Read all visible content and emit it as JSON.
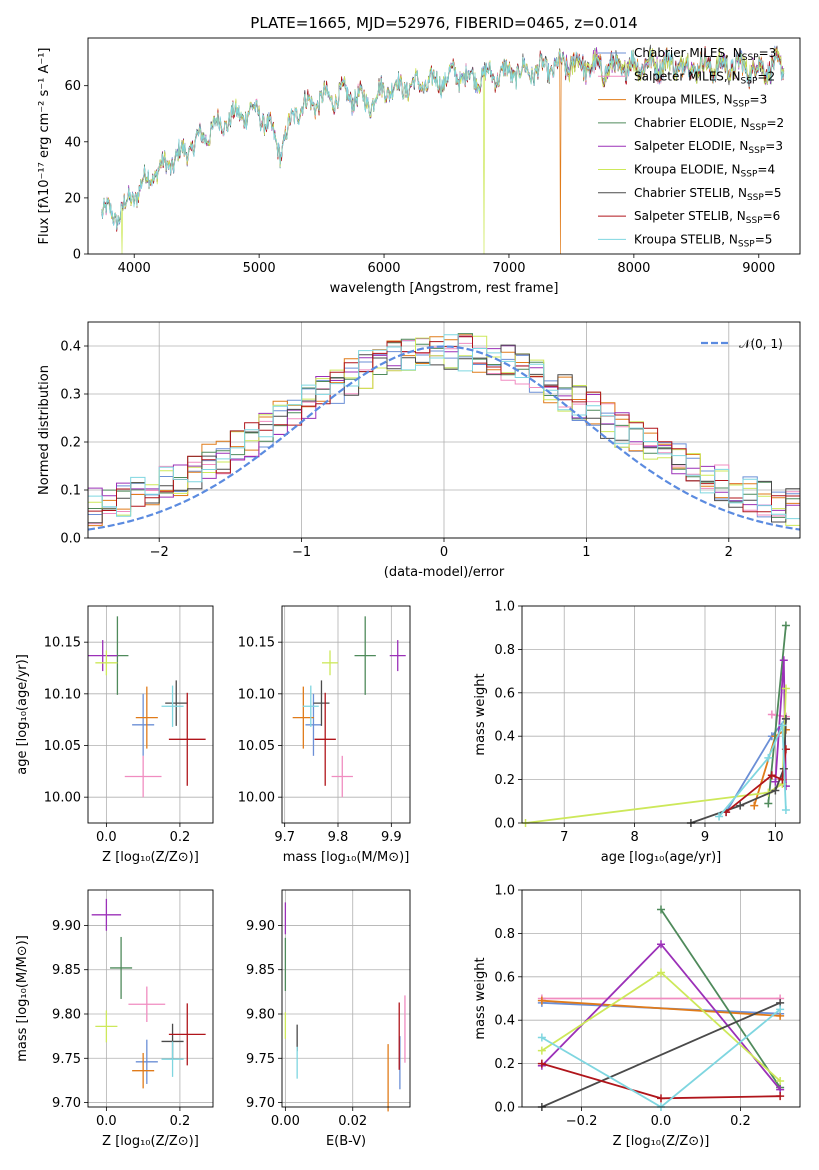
{
  "colors": {
    "Chabrier MILES": "#6b8fd6",
    "Salpeter MILES": "#f08cc0",
    "Kroupa MILES": "#e07b1a",
    "Chabrier ELODIE": "#4f8a5b",
    "Salpeter ELODIE": "#9b30b8",
    "Kroupa ELODIE": "#cde85a",
    "Chabrier STELIB": "#4a4a4a",
    "Salpeter STELIB": "#b0151b",
    "Kroupa STELIB": "#7fd6e0",
    "normal_curve": "#5b8be0"
  },
  "chart_data": [
    {
      "type": "line",
      "title": "PLATE=1665, MJD=52976, FIBERID=0465, z=0.014",
      "xlabel": "wavelength [Angstrom, rest frame]",
      "ylabel": "Flux [fλ10⁻¹⁷ erg cm⁻² s⁻¹ A⁻¹]",
      "xlim": [
        3630,
        9330
      ],
      "ylim": [
        0,
        77
      ],
      "xticks": [
        4000,
        5000,
        6000,
        7000,
        8000,
        9000
      ],
      "yticks": [
        0,
        20,
        40,
        60
      ],
      "legend_position": "upper right",
      "legend": [
        "Chabrier MILES, N_SSP=3",
        "Salpeter MILES, N_SSP=2",
        "Kroupa MILES, N_SSP=3",
        "Chabrier ELODIE, N_SSP=2",
        "Salpeter ELODIE, N_SSP=3",
        "Kroupa ELODIE, N_SSP=4",
        "Chabrier STELIB, N_SSP=5",
        "Salpeter STELIB, N_SSP=6",
        "Kroupa STELIB, N_SSP=5"
      ],
      "spectrum_anchors": {
        "x": [
          3740,
          3850,
          3950,
          4100,
          4300,
          4500,
          4700,
          4860,
          5000,
          5175,
          5300,
          5500,
          5700,
          5890,
          6000,
          6200,
          6400,
          6563,
          6700,
          6900,
          7100,
          7300,
          7500,
          7600,
          7800,
          8000,
          8200,
          8400,
          8600,
          8800,
          9000,
          9200
        ],
        "y": [
          16,
          13,
          18,
          27,
          33,
          40,
          47,
          50,
          51,
          37,
          52,
          55,
          57,
          54,
          59,
          60,
          61,
          64,
          63,
          64,
          65,
          66,
          68,
          67,
          66,
          67,
          68,
          67,
          67,
          67,
          66,
          67
        ]
      },
      "dropouts": [
        {
          "x": 3900,
          "series": "Kroupa ELODIE"
        },
        {
          "x": 6800,
          "series": "Kroupa ELODIE"
        },
        {
          "x": 7410,
          "series": "Kroupa MILES"
        }
      ]
    },
    {
      "type": "histogram",
      "xlabel": "(data-model)/error",
      "ylabel": "Normed distribution",
      "xlim": [
        -2.5,
        2.5
      ],
      "ylim": [
        0,
        0.45
      ],
      "xticks": [
        -2,
        -1,
        0,
        1,
        2
      ],
      "yticks": [
        0.0,
        0.1,
        0.2,
        0.3,
        0.4
      ],
      "grid": true,
      "legend_position": "upper right",
      "legend": [
        "𝒩(0, 1)"
      ],
      "bin_width": 0.1,
      "curve": {
        "name": "N(0,1)",
        "style": "dashed"
      }
    },
    {
      "type": "scatter",
      "xlabel": "Z [log₁₀(Z/Z⊙)]",
      "ylabel": "age  [log₁₀(age/yr)]",
      "xlim": [
        -0.05,
        0.29
      ],
      "ylim": [
        9.975,
        10.185
      ],
      "xticks": [
        0.0,
        0.2
      ],
      "yticks": [
        10.0,
        10.05,
        10.1,
        10.15
      ],
      "points": [
        {
          "series": "Chabrier MILES",
          "x": 0.1,
          "y": 10.07,
          "xerr": 0.03,
          "yerr": 0.03
        },
        {
          "series": "Salpeter MILES",
          "x": 0.1,
          "y": 10.02,
          "xerr": 0.05,
          "yerr": 0.02
        },
        {
          "series": "Kroupa MILES",
          "x": 0.11,
          "y": 10.077,
          "xerr": 0.03,
          "yerr": 0.03
        },
        {
          "series": "Chabrier ELODIE",
          "x": 0.03,
          "y": 10.137,
          "xerr": 0.03,
          "yerr": 0.038
        },
        {
          "series": "Salpeter ELODIE",
          "x": -0.01,
          "y": 10.137,
          "xerr": 0.04,
          "yerr": 0.015
        },
        {
          "series": "Kroupa ELODIE",
          "x": 0.0,
          "y": 10.13,
          "xerr": 0.03,
          "yerr": 0.012
        },
        {
          "series": "Chabrier STELIB",
          "x": 0.19,
          "y": 10.091,
          "xerr": 0.03,
          "yerr": 0.022
        },
        {
          "series": "Salpeter STELIB",
          "x": 0.22,
          "y": 10.056,
          "xerr": 0.05,
          "yerr": 0.045
        },
        {
          "series": "Kroupa STELIB",
          "x": 0.18,
          "y": 10.088,
          "xerr": 0.03,
          "yerr": 0.02
        }
      ]
    },
    {
      "type": "scatter",
      "xlabel": "mass [log₁₀(M/M⊙)]",
      "xlim": [
        9.695,
        9.935
      ],
      "ylim": [
        9.975,
        10.185
      ],
      "xticks": [
        9.7,
        9.8,
        9.9
      ],
      "yticks": [
        10.0,
        10.05,
        10.1,
        10.15
      ],
      "points": [
        {
          "series": "Chabrier MILES",
          "x": 9.754,
          "y": 10.07,
          "xerr": 0.015,
          "yerr": 0.03
        },
        {
          "series": "Salpeter MILES",
          "x": 9.808,
          "y": 10.02,
          "xerr": 0.02,
          "yerr": 0.02
        },
        {
          "series": "Kroupa MILES",
          "x": 9.735,
          "y": 10.077,
          "xerr": 0.02,
          "yerr": 0.03
        },
        {
          "series": "Chabrier ELODIE",
          "x": 9.851,
          "y": 10.137,
          "xerr": 0.02,
          "yerr": 0.038
        },
        {
          "series": "Salpeter ELODIE",
          "x": 9.912,
          "y": 10.137,
          "xerr": 0.015,
          "yerr": 0.015
        },
        {
          "series": "Kroupa ELODIE",
          "x": 9.785,
          "y": 10.13,
          "xerr": 0.015,
          "yerr": 0.012
        },
        {
          "series": "Chabrier STELIB",
          "x": 9.769,
          "y": 10.091,
          "xerr": 0.015,
          "yerr": 0.022
        },
        {
          "series": "Salpeter STELIB",
          "x": 9.776,
          "y": 10.056,
          "xerr": 0.02,
          "yerr": 0.045
        },
        {
          "series": "Kroupa STELIB",
          "x": 9.749,
          "y": 10.088,
          "xerr": 0.015,
          "yerr": 0.02
        }
      ]
    },
    {
      "type": "line",
      "xlabel": "age  [log₁₀(age/yr)]",
      "ylabel": "mass weight",
      "xlim": [
        6.4,
        10.35
      ],
      "ylim": [
        0,
        1.0
      ],
      "xticks": [
        7,
        8,
        9,
        10
      ],
      "yticks": [
        0.0,
        0.2,
        0.4,
        0.6,
        0.8,
        1.0
      ],
      "grid": true,
      "series": [
        {
          "name": "Chabrier MILES",
          "x": [
            9.3,
            9.95,
            10.15
          ],
          "y": [
            0.05,
            0.4,
            0.48
          ]
        },
        {
          "name": "Salpeter MILES",
          "x": [
            9.95,
            10.15
          ],
          "y": [
            0.5,
            0.49
          ]
        },
        {
          "name": "Kroupa MILES",
          "x": [
            9.7,
            10.0,
            10.15
          ],
          "y": [
            0.08,
            0.4,
            0.43
          ]
        },
        {
          "name": "Chabrier ELODIE",
          "x": [
            9.9,
            10.15
          ],
          "y": [
            0.09,
            0.91
          ]
        },
        {
          "name": "Salpeter ELODIE",
          "x": [
            10.0,
            10.12,
            10.15
          ],
          "y": [
            0.19,
            0.75,
            0.17
          ]
        },
        {
          "name": "Kroupa ELODIE",
          "x": [
            6.45,
            9.9,
            10.1,
            10.15
          ],
          "y": [
            0.0,
            0.14,
            0.18,
            0.62
          ]
        },
        {
          "name": "Chabrier STELIB",
          "x": [
            8.8,
            9.5,
            10.0,
            10.12,
            10.15
          ],
          "y": [
            0.0,
            0.08,
            0.15,
            0.25,
            0.48
          ]
        },
        {
          "name": "Salpeter STELIB",
          "x": [
            9.3,
            9.95,
            10.1,
            10.15
          ],
          "y": [
            0.05,
            0.22,
            0.2,
            0.34
          ]
        },
        {
          "name": "Kroupa STELIB",
          "x": [
            9.2,
            9.9,
            10.1,
            10.15
          ],
          "y": [
            0.03,
            0.3,
            0.45,
            0.06
          ]
        }
      ]
    },
    {
      "type": "scatter",
      "xlabel": "Z [log₁₀(Z/Z⊙)]",
      "ylabel": "mass [log₁₀(M/M⊙)]",
      "xlim": [
        -0.05,
        0.29
      ],
      "ylim": [
        9.695,
        9.94
      ],
      "xticks": [
        0.0,
        0.2
      ],
      "yticks": [
        9.7,
        9.75,
        9.8,
        9.85,
        9.9
      ],
      "points": [
        {
          "series": "Chabrier MILES",
          "x": 0.11,
          "y": 9.746,
          "xerr": 0.03,
          "yerr": 0.025
        },
        {
          "series": "Salpeter MILES",
          "x": 0.11,
          "y": 9.811,
          "xerr": 0.05,
          "yerr": 0.02
        },
        {
          "series": "Kroupa MILES",
          "x": 0.1,
          "y": 9.736,
          "xerr": 0.03,
          "yerr": 0.02
        },
        {
          "series": "Chabrier ELODIE",
          "x": 0.04,
          "y": 9.852,
          "xerr": 0.03,
          "yerr": 0.035
        },
        {
          "series": "Salpeter ELODIE",
          "x": 0.0,
          "y": 9.912,
          "xerr": 0.04,
          "yerr": 0.018
        },
        {
          "series": "Kroupa ELODIE",
          "x": 0.0,
          "y": 9.786,
          "xerr": 0.03,
          "yerr": 0.018
        },
        {
          "series": "Chabrier STELIB",
          "x": 0.18,
          "y": 9.769,
          "xerr": 0.03,
          "yerr": 0.02
        },
        {
          "series": "Salpeter STELIB",
          "x": 0.22,
          "y": 9.777,
          "xerr": 0.05,
          "yerr": 0.035
        },
        {
          "series": "Kroupa STELIB",
          "x": 0.18,
          "y": 9.749,
          "xerr": 0.03,
          "yerr": 0.02
        }
      ]
    },
    {
      "type": "scatter",
      "xlabel": "E(B-V)",
      "xlim": [
        -0.001,
        0.037
      ],
      "ylim": [
        9.695,
        9.94
      ],
      "xticks": [
        0.0,
        0.02
      ],
      "yticks": [
        9.7,
        9.75,
        9.8,
        9.85,
        9.9
      ],
      "points": [
        {
          "series": "Chabrier MILES",
          "x": 0.034,
          "y": 9.745,
          "yerr": 0.03
        },
        {
          "series": "Salpeter MILES",
          "x": 0.0355,
          "y": 9.783,
          "yerr": 0.038
        },
        {
          "series": "Kroupa MILES",
          "x": 0.0305,
          "y": 9.728,
          "yerr": 0.038
        },
        {
          "series": "Chabrier ELODIE",
          "x": 0.0,
          "y": 9.856,
          "yerr": 0.03
        },
        {
          "series": "Salpeter ELODIE",
          "x": 0.0,
          "y": 9.908,
          "yerr": 0.018
        },
        {
          "series": "Kroupa ELODIE",
          "x": 0.0,
          "y": 9.787,
          "yerr": 0.015
        },
        {
          "series": "Chabrier STELIB",
          "x": 0.0035,
          "y": 9.773,
          "yerr": 0.015
        },
        {
          "series": "Salpeter STELIB",
          "x": 0.0338,
          "y": 9.775,
          "yerr": 0.038
        },
        {
          "series": "Kroupa STELIB",
          "x": 0.0035,
          "y": 9.745,
          "yerr": 0.018
        }
      ]
    },
    {
      "type": "line",
      "xlabel": "Z [log₁₀(Z/Z⊙)]",
      "ylabel": "mass weight",
      "xlim": [
        -0.35,
        0.35
      ],
      "ylim": [
        0,
        1.0
      ],
      "xticks": [
        -0.2,
        0.0,
        0.2
      ],
      "yticks": [
        0.0,
        0.2,
        0.4,
        0.6,
        0.8,
        1.0
      ],
      "grid": true,
      "series": [
        {
          "name": "Chabrier MILES",
          "x": [
            -0.3,
            0.3
          ],
          "y": [
            0.48,
            0.43
          ]
        },
        {
          "name": "Salpeter MILES",
          "x": [
            -0.3,
            0.3
          ],
          "y": [
            0.5,
            0.5
          ]
        },
        {
          "name": "Kroupa MILES",
          "x": [
            -0.3,
            0.3
          ],
          "y": [
            0.49,
            0.42
          ]
        },
        {
          "name": "Chabrier ELODIE",
          "x": [
            0.0,
            0.3
          ],
          "y": [
            0.91,
            0.09
          ]
        },
        {
          "name": "Salpeter ELODIE",
          "x": [
            -0.3,
            0.0,
            0.3
          ],
          "y": [
            0.19,
            0.75,
            0.08
          ]
        },
        {
          "name": "Kroupa ELODIE",
          "x": [
            -0.3,
            0.0,
            0.3
          ],
          "y": [
            0.26,
            0.62,
            0.12
          ]
        },
        {
          "name": "Chabrier STELIB",
          "x": [
            -0.3,
            0.3
          ],
          "y": [
            0.0,
            0.48
          ]
        },
        {
          "name": "Salpeter STELIB",
          "x": [
            -0.3,
            0.0,
            0.3
          ],
          "y": [
            0.2,
            0.04,
            0.05
          ]
        },
        {
          "name": "Kroupa STELIB",
          "x": [
            -0.3,
            0.0,
            0.3
          ],
          "y": [
            0.32,
            0.0,
            0.45
          ]
        }
      ]
    }
  ]
}
